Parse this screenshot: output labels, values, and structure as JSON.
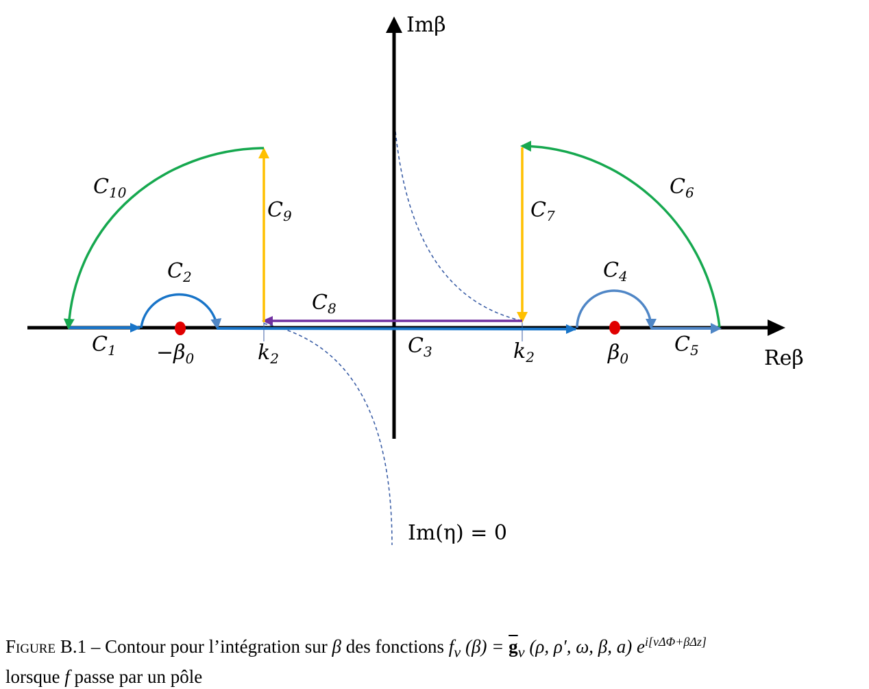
{
  "axes": {
    "real_label": "Reβ",
    "imag_label": "Imβ"
  },
  "curve_label": "Im(η) = 0",
  "points": {
    "minus_beta0": "−β",
    "minus_beta0_sub": "0",
    "beta0": "β",
    "beta0_sub": "0",
    "k2_left": "k",
    "k2_left_sub": "2",
    "k2_right": "k",
    "k2_right_sub": "2"
  },
  "contours": [
    {
      "id": "c1",
      "label": "C",
      "sub": "1",
      "color": "#1874c8"
    },
    {
      "id": "c2",
      "label": "C",
      "sub": "2",
      "color": "#1874c8"
    },
    {
      "id": "c3",
      "label": "C",
      "sub": "3",
      "color": "#1874c8"
    },
    {
      "id": "c4",
      "label": "C",
      "sub": "4",
      "color": "#4f86c6"
    },
    {
      "id": "c5",
      "label": "C",
      "sub": "5",
      "color": "#4f86c6"
    },
    {
      "id": "c6",
      "label": "C",
      "sub": "6",
      "color": "#16a84f"
    },
    {
      "id": "c7",
      "label": "C",
      "sub": "7",
      "color": "#ffc000"
    },
    {
      "id": "c8",
      "label": "C",
      "sub": "8",
      "color": "#7030a0"
    },
    {
      "id": "c9",
      "label": "C",
      "sub": "9",
      "color": "#ffc000"
    },
    {
      "id": "c10",
      "label": "C",
      "sub": "10",
      "color": "#16a84f"
    }
  ],
  "colors": {
    "pole": "#e00000",
    "axis": "#000000",
    "dashed_curve": "#3b5ea6"
  },
  "caption": {
    "figure_word": "Figure",
    "figure_number": "B.1",
    "dash": "–",
    "text_before_beta": "Contour pour l’intégration sur",
    "beta": "β",
    "text_des_fonctions": "des fonctions",
    "formula": "f",
    "formula_sub": "ν",
    "formula_arg": "(β) =",
    "g": "g",
    "g_sub": "ν",
    "g_args": "(ρ, ρ′, ω, β, a) e",
    "exponent": "i[νΔΦ+βΔz]",
    "line2_a": "lorsque",
    "line2_f": "f",
    "line2_b": "passe par un pôle"
  }
}
